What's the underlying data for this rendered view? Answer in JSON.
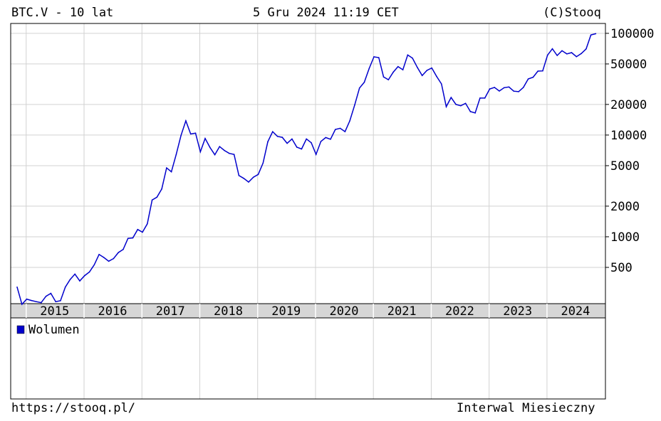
{
  "header": {
    "symbol": "BTC.V - 10 lat",
    "datetime": "5 Gru 2024 11:19 CET",
    "copyright": "(C)Stooq"
  },
  "footer": {
    "url": "https://stooq.pl/",
    "interval": "Interwal Miesieczny"
  },
  "chart_data": [
    {
      "type": "line",
      "scale": "log",
      "grid": true,
      "ylim": [
        220,
        125000
      ],
      "y_ticks": [
        100000,
        50000,
        20000,
        10000,
        5000,
        2000,
        1000,
        500
      ],
      "y_tick_labels": [
        "100000",
        "50000",
        "20000",
        "10000",
        "5000",
        "2000",
        "1000",
        "500"
      ],
      "x_ticks": [
        "2015",
        "2016",
        "2017",
        "2018",
        "2019",
        "2020",
        "2021",
        "2022",
        "2023",
        "2024"
      ],
      "x_start": "2014-12",
      "color": "#0000cc",
      "values": [
        320,
        217,
        244,
        236,
        230,
        225,
        260,
        278,
        230,
        235,
        320,
        380,
        430,
        368,
        415,
        450,
        530,
        670,
        625,
        575,
        610,
        700,
        750,
        965,
        975,
        1180,
        1110,
        1340,
        2300,
        2450,
        2950,
        4750,
        4350,
        6450,
        9950,
        13800,
        10250,
        10450,
        6850,
        9250,
        7550,
        6400,
        7700,
        7050,
        6600,
        6450,
        4000,
        3750,
        3450,
        3850,
        4100,
        5300,
        8600,
        10800,
        9700,
        9500,
        8300,
        9150,
        7600,
        7300,
        9150,
        8400,
        6450,
        8650,
        9450,
        9100,
        11350,
        11650,
        10800,
        13800,
        19700,
        29000,
        33000,
        45000,
        58800,
        57700,
        37300,
        35000,
        41500,
        47100,
        43800,
        61300,
        57000,
        46200,
        38500,
        43200,
        45600,
        37700,
        31800,
        19000,
        23400,
        20000,
        19400,
        20500,
        17000,
        16500,
        23100,
        23100,
        28400,
        29400,
        27100,
        29200,
        29700,
        27000,
        26700,
        29400,
        35600,
        37000,
        42500,
        42700,
        61000,
        70500,
        60600,
        67500,
        62800,
        64600,
        58900,
        63300,
        70300,
        96400,
        99200
      ],
      "volume_label": "Wolumen",
      "volume_values": [
        0,
        0,
        0,
        0,
        0,
        0,
        0,
        0,
        0,
        0,
        0,
        0,
        0,
        0,
        0,
        0,
        0,
        0,
        0,
        0,
        0,
        0,
        0,
        0,
        0,
        0,
        0,
        0,
        0,
        0,
        0,
        0,
        0,
        0,
        0,
        0,
        0,
        0,
        0,
        0,
        0,
        0,
        0,
        0,
        0,
        0,
        0,
        0,
        0,
        0,
        0,
        0,
        0,
        0,
        0,
        0,
        0,
        0,
        0,
        0,
        0,
        0,
        0,
        0,
        0,
        0,
        0,
        0,
        0,
        0,
        0,
        0,
        0,
        0,
        0,
        0,
        0,
        0,
        0,
        0,
        0,
        0,
        0,
        0,
        0,
        0,
        0,
        0,
        0,
        0,
        0,
        0,
        0,
        0,
        0,
        0,
        0,
        0,
        0,
        0,
        0,
        0,
        0,
        0,
        0,
        0,
        0,
        0,
        0,
        0,
        0,
        0,
        0,
        0,
        0,
        0,
        0,
        0,
        0,
        0,
        0
      ],
      "volume_color": "#0000cc"
    }
  ]
}
